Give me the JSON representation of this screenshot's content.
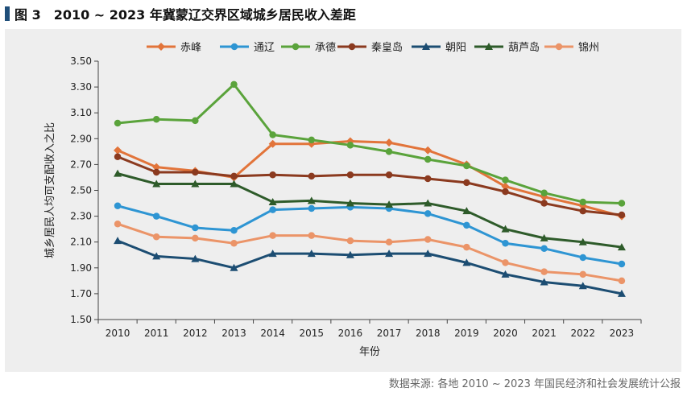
{
  "figure": {
    "title": "图 3　2010 ~ 2023 年冀蒙辽交界区域城乡居民收入差距",
    "source": "数据来源: 各地 2010 ~ 2023 年国民经济和社会发展统计公报"
  },
  "chart_data": {
    "type": "line",
    "xlabel": "年份",
    "ylabel": "城乡居民人均可支配收入之比",
    "ylim": [
      1.5,
      3.5
    ],
    "yticks": [
      "3.50",
      "3.30",
      "3.10",
      "2.90",
      "2.70",
      "2.50",
      "2.30",
      "2.10",
      "1.90",
      "1.70",
      "1.50"
    ],
    "categories": [
      "2010",
      "2011",
      "2012",
      "2013",
      "2014",
      "2015",
      "2016",
      "2017",
      "2018",
      "2019",
      "2020",
      "2021",
      "2022",
      "2023"
    ],
    "grid": false,
    "legend_position": "top",
    "series": [
      {
        "name": "赤峰",
        "color": "#e2743a",
        "marker": "diamond",
        "values": [
          2.81,
          2.68,
          2.65,
          2.6,
          2.86,
          2.86,
          2.88,
          2.87,
          2.81,
          2.7,
          2.53,
          2.45,
          2.38,
          2.3
        ]
      },
      {
        "name": "通辽",
        "color": "#2e95d3",
        "marker": "circle",
        "values": [
          2.38,
          2.3,
          2.21,
          2.19,
          2.35,
          2.36,
          2.37,
          2.36,
          2.32,
          2.23,
          2.09,
          2.05,
          1.98,
          1.93
        ]
      },
      {
        "name": "承德",
        "color": "#5aa33b",
        "marker": "circle",
        "values": [
          3.02,
          3.05,
          3.04,
          3.32,
          2.93,
          2.89,
          2.85,
          2.8,
          2.74,
          2.69,
          2.58,
          2.48,
          2.41,
          2.4
        ]
      },
      {
        "name": "秦皇岛",
        "color": "#8b3a1f",
        "marker": "circle",
        "values": [
          2.76,
          2.64,
          2.64,
          2.61,
          2.62,
          2.61,
          2.62,
          2.62,
          2.59,
          2.56,
          2.49,
          2.4,
          2.34,
          2.31
        ]
      },
      {
        "name": "朝阳",
        "color": "#1c4d72",
        "marker": "triangle",
        "values": [
          2.11,
          1.99,
          1.97,
          1.9,
          2.01,
          2.01,
          2.0,
          2.01,
          2.01,
          1.94,
          1.85,
          1.79,
          1.76,
          1.7
        ]
      },
      {
        "name": "葫芦岛",
        "color": "#2e5b2a",
        "marker": "triangle",
        "values": [
          2.63,
          2.55,
          2.55,
          2.55,
          2.41,
          2.42,
          2.4,
          2.39,
          2.4,
          2.34,
          2.2,
          2.13,
          2.1,
          2.06
        ]
      },
      {
        "name": "锦州",
        "color": "#eb9468",
        "marker": "circle",
        "values": [
          2.24,
          2.14,
          2.13,
          2.09,
          2.15,
          2.15,
          2.11,
          2.1,
          2.12,
          2.06,
          1.94,
          1.87,
          1.85,
          1.8
        ]
      }
    ]
  }
}
